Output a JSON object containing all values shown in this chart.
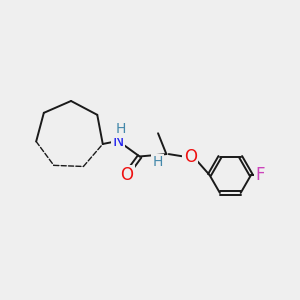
{
  "bg_color": "#efefef",
  "bond_color": "#1a1a1a",
  "N_color": "#2222ee",
  "O_color": "#ee1111",
  "F_color": "#cc44bb",
  "H_color": "#4488aa",
  "label_N": "N",
  "label_H_on_N": "H",
  "label_H_on_C": "H",
  "label_O_carbonyl": "O",
  "label_O_ether": "O",
  "label_F": "F",
  "font_size": 11,
  "fig_width": 3.0,
  "fig_height": 3.0,
  "dpi": 100
}
